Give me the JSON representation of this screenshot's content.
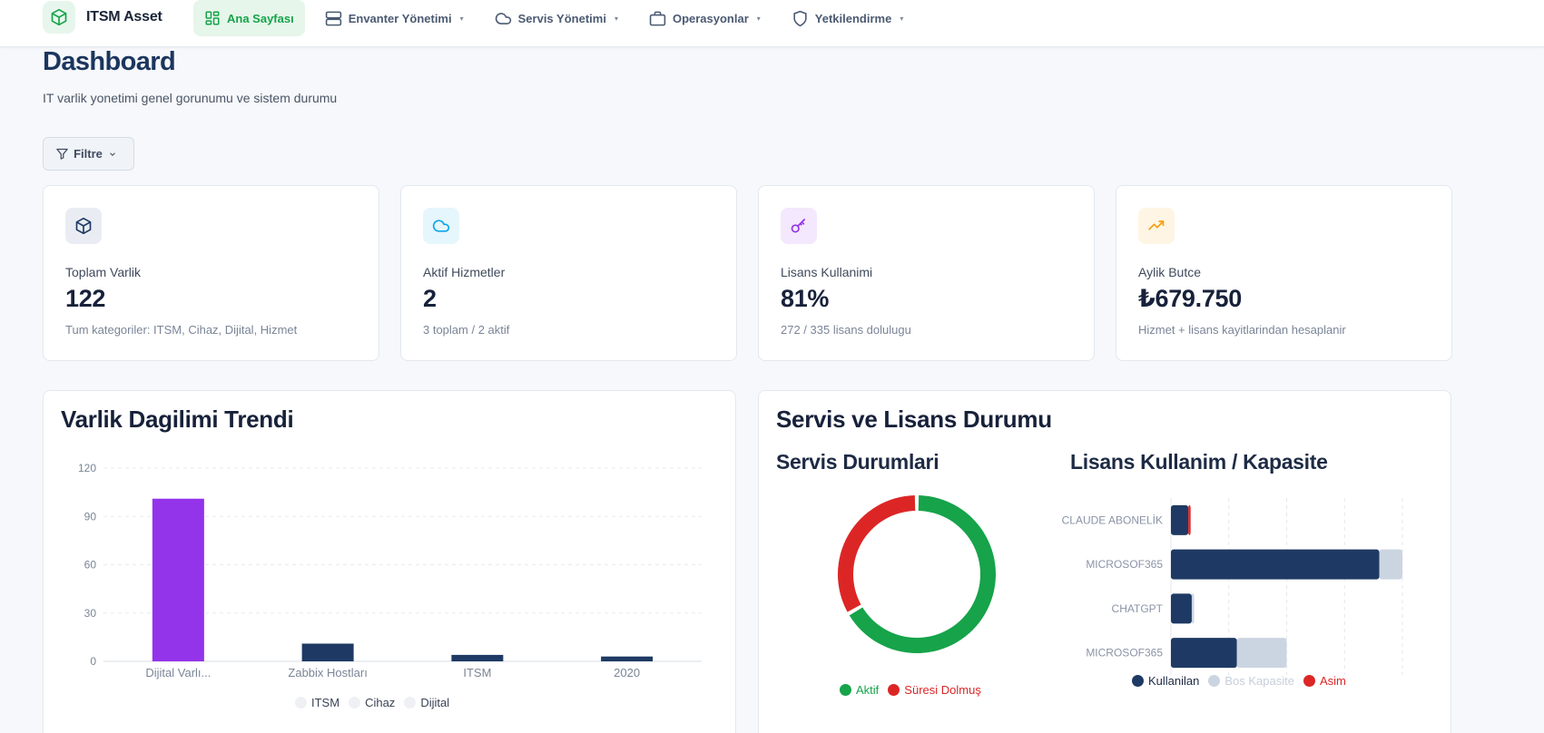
{
  "nav": {
    "brand": "ITSM Asset",
    "items": [
      {
        "label": "Ana Sayfası",
        "active": true
      },
      {
        "label": "Envanter Yönetimi",
        "caret": "▾"
      },
      {
        "label": "Servis Yönetimi",
        "caret": "▾"
      },
      {
        "label": "Operasyonlar",
        "caret": "▾"
      },
      {
        "label": "Yetkilendirme",
        "caret": "▾"
      }
    ]
  },
  "header": {
    "title": "Dashboard",
    "subtitle": "IT varlik yonetimi genel gorunumu ve sistem durumu",
    "filter_label": "Filtre"
  },
  "stats": [
    {
      "label": "Toplam Varlik",
      "value": "122",
      "sub": "Tum kategoriler: ITSM, Cihaz, Dijital, Hizmet",
      "icon": "box-icon",
      "color": "#1e3a64"
    },
    {
      "label": "Aktif Hizmetler",
      "value": "2",
      "sub": "3 toplam / 2 aktif",
      "icon": "cloud-icon",
      "color": "#0ea5e9"
    },
    {
      "label": "Lisans Kullanimi",
      "value": "81%",
      "sub": "272 / 335 lisans dolulugu",
      "icon": "key-icon",
      "color": "#9333ea"
    },
    {
      "label": "Aylik Butce",
      "value": "₺679.750",
      "sub": "Hizmet + lisans kayitlarindan hesaplanir",
      "icon": "trending-up-icon",
      "color": "#f59e0b"
    }
  ],
  "panels": {
    "trend_title": "Varlik Dagilimi Trendi",
    "service_title": "Servis ve Lisans Durumu",
    "service_status_title": "Servis Durumlari",
    "license_title": "Lisans Kullanim / Kapasite"
  },
  "chart_data": [
    {
      "type": "bar",
      "categories": [
        "Dijital Varlı...",
        "Zabbix Hostları",
        "ITSM",
        "2020"
      ],
      "values": [
        101,
        11,
        4,
        3
      ],
      "colors": [
        "#9333ea",
        "#1e3a64",
        "#1e3a64",
        "#1e3a64"
      ],
      "ylim": [
        0,
        120
      ],
      "yticks": [
        0,
        30,
        60,
        90,
        120
      ],
      "legend": [
        "ITSM",
        "Cihaz",
        "Dijital"
      ],
      "grid": true
    },
    {
      "type": "pie",
      "donut": true,
      "series": [
        {
          "name": "Aktif",
          "value": 2,
          "color": "#16a34a"
        },
        {
          "name": "Süresi Dolmuş",
          "value": 1,
          "color": "#dc2626"
        }
      ]
    },
    {
      "type": "bar",
      "orientation": "horizontal",
      "stacked": true,
      "categories": [
        "CLAUDE ABONELİK",
        "MICROSOF365",
        "CHATGPT",
        "MICROSOF365"
      ],
      "series": [
        {
          "name": "Kullanilan",
          "values": [
            15,
            180,
            18,
            57
          ],
          "color": "#1e3a64"
        },
        {
          "name": "Bos Kapasite",
          "values": [
            0,
            20,
            2,
            43
          ],
          "color": "#cbd5e1"
        },
        {
          "name": "Asim",
          "values": [
            2,
            0,
            0,
            0
          ],
          "color": "#dc2626"
        }
      ],
      "xlim": [
        0,
        200
      ],
      "xticks": [
        0,
        50,
        100,
        150,
        200
      ],
      "grid": true
    }
  ]
}
